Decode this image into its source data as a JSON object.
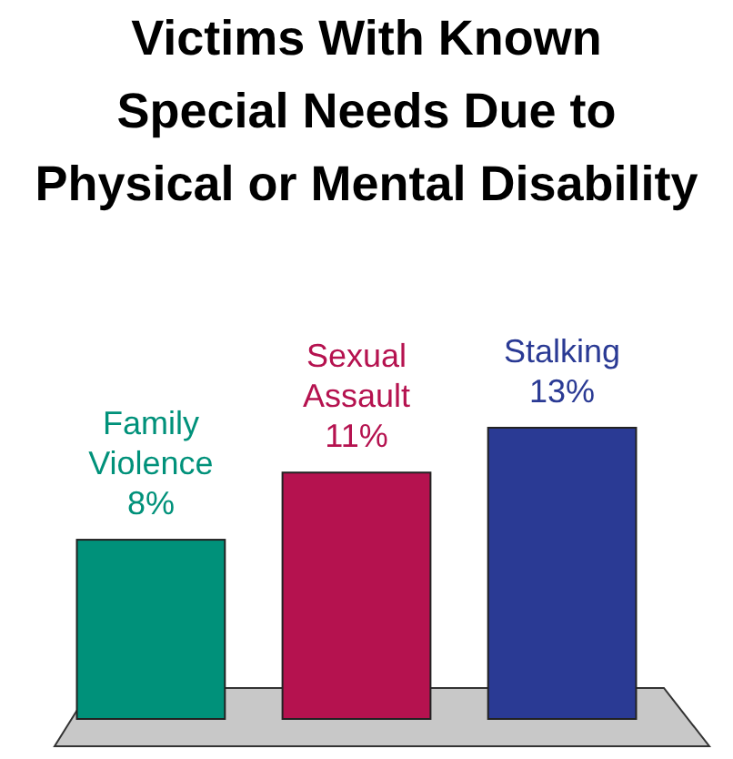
{
  "chart_data": {
    "type": "bar",
    "title": "Victims With Known\nSpecial Needs Due to\nPhysical or Mental Disability",
    "categories": [
      "Family Violence",
      "Sexual Assault",
      "Stalking"
    ],
    "values": [
      8,
      11,
      13
    ],
    "value_labels": [
      "8%",
      "11%",
      "13%"
    ],
    "colors": [
      "#00917a",
      "#b5124f",
      "#2a3a94"
    ],
    "relative": false
  }
}
